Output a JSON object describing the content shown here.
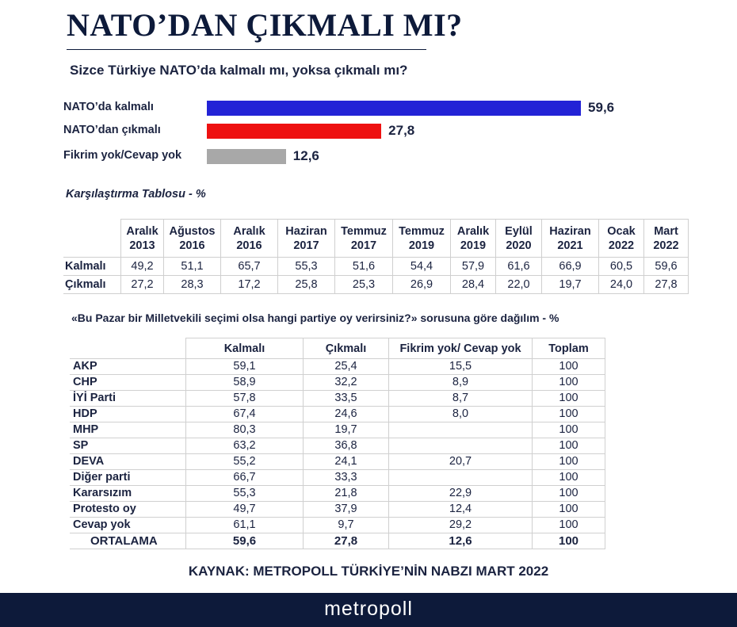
{
  "title": "NATO’DAN ÇIKMALI MI?",
  "question": "Sizce Türkiye NATO’da kalmalı mı, yoksa çıkmalı mı?",
  "colors": {
    "kalmali": "#2323d6",
    "cikmali": "#ee1111",
    "fikrim_yok": "#a8a8a8",
    "navy": "#0d1a3a"
  },
  "chart_data": [
    {
      "type": "bar",
      "orientation": "horizontal",
      "categories": [
        "NATO’da kalmalı",
        "NATO’dan çıkmalı",
        "Fikrim yok/Cevap yok"
      ],
      "values": [
        "59,6",
        "27,8",
        "12,6"
      ],
      "values_numeric": [
        59.6,
        27.8,
        12.6
      ],
      "title": "Sizce Türkiye NATO’da kalmalı mı, yoksa çıkmalı mı?",
      "xlim": [
        0,
        100
      ]
    },
    {
      "type": "table",
      "title": "Karşılaştırma Tablosu - %",
      "columns": [
        {
          "month": "Aralık",
          "year": "2013"
        },
        {
          "month": "Ağustos",
          "year": "2016"
        },
        {
          "month": "Aralık",
          "year": "2016"
        },
        {
          "month": "Haziran",
          "year": "2017"
        },
        {
          "month": "Temmuz",
          "year": "2017"
        },
        {
          "month": "Temmuz",
          "year": "2019"
        },
        {
          "month": "Aralık",
          "year": "2019"
        },
        {
          "month": "Eylül",
          "year": "2020"
        },
        {
          "month": "Haziran",
          "year": "2021"
        },
        {
          "month": "Ocak",
          "year": "2022"
        },
        {
          "month": "Mart",
          "year": "2022"
        }
      ],
      "rows": [
        {
          "label": "Kalmalı",
          "values": [
            "49,2",
            "51,1",
            "65,7",
            "55,3",
            "51,6",
            "54,4",
            "57,9",
            "61,6",
            "66,9",
            "60,5",
            "59,6"
          ]
        },
        {
          "label": "Çıkmalı",
          "values": [
            "27,2",
            "28,3",
            "17,2",
            "25,8",
            "25,3",
            "26,9",
            "28,4",
            "22,0",
            "19,7",
            "24,0",
            "27,8"
          ]
        }
      ]
    },
    {
      "type": "table",
      "title": "«Bu Pazar bir Milletvekili seçimi olsa hangi partiye oy verirsiniz?» sorusuna göre dağılım - %",
      "headers": [
        "Kalmalı",
        "Çıkmalı",
        "Fikrim yok/ Cevap yok",
        "Toplam"
      ],
      "rows": [
        {
          "label": "AKP",
          "values": [
            "59,1",
            "25,4",
            "15,5",
            "100"
          ]
        },
        {
          "label": "CHP",
          "values": [
            "58,9",
            "32,2",
            "8,9",
            "100"
          ]
        },
        {
          "label": "İYİ Parti",
          "values": [
            "57,8",
            "33,5",
            "8,7",
            "100"
          ]
        },
        {
          "label": "HDP",
          "values": [
            "67,4",
            "24,6",
            "8,0",
            "100"
          ]
        },
        {
          "label": "MHP",
          "values": [
            "80,3",
            "19,7",
            "",
            "100"
          ]
        },
        {
          "label": "SP",
          "values": [
            "63,2",
            "36,8",
            "",
            "100"
          ]
        },
        {
          "label": "DEVA",
          "values": [
            "55,2",
            "24,1",
            "20,7",
            "100"
          ]
        },
        {
          "label": "Diğer parti",
          "values": [
            "66,7",
            "33,3",
            "",
            "100"
          ]
        },
        {
          "label": "Kararsızım",
          "values": [
            "55,3",
            "21,8",
            "22,9",
            "100"
          ]
        },
        {
          "label": "Protesto oy",
          "values": [
            "49,7",
            "37,9",
            "12,4",
            "100"
          ]
        },
        {
          "label": "Cevap yok",
          "values": [
            "61,1",
            "9,7",
            "29,2",
            "100"
          ]
        },
        {
          "label": "ORTALAMA",
          "values": [
            "59,6",
            "27,8",
            "12,6",
            "100"
          ]
        }
      ]
    }
  ],
  "source": "KAYNAK: METROPOLL TÜRKİYE’NİN NABZI MART 2022",
  "brand": "metropoll"
}
